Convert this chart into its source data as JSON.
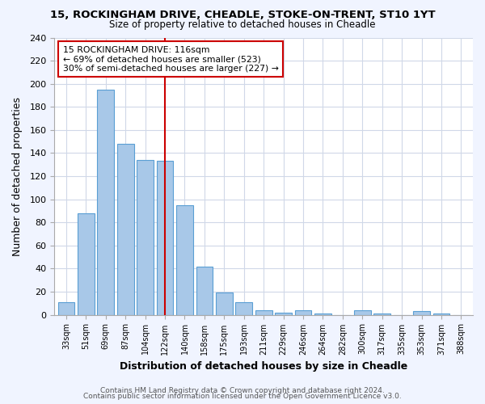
{
  "title": "15, ROCKINGHAM DRIVE, CHEADLE, STOKE-ON-TRENT, ST10 1YT",
  "subtitle": "Size of property relative to detached houses in Cheadle",
  "xlabel": "Distribution of detached houses by size in Cheadle",
  "ylabel": "Number of detached properties",
  "bar_labels": [
    "33sqm",
    "51sqm",
    "69sqm",
    "87sqm",
    "104sqm",
    "122sqm",
    "140sqm",
    "158sqm",
    "175sqm",
    "193sqm",
    "211sqm",
    "229sqm",
    "246sqm",
    "264sqm",
    "282sqm",
    "300sqm",
    "317sqm",
    "335sqm",
    "353sqm",
    "371sqm",
    "388sqm"
  ],
  "bar_values": [
    11,
    88,
    195,
    148,
    134,
    133,
    95,
    42,
    19,
    11,
    4,
    2,
    4,
    1,
    0,
    4,
    1,
    0,
    3,
    1,
    0
  ],
  "bar_color": "#a8c8e8",
  "bar_edge_color": "#5a9fd4",
  "ylim": [
    0,
    240
  ],
  "yticks": [
    0,
    20,
    40,
    60,
    80,
    100,
    120,
    140,
    160,
    180,
    200,
    220,
    240
  ],
  "vline_x_index": 5,
  "vline_color": "#cc0000",
  "annotation_title": "15 ROCKINGHAM DRIVE: 116sqm",
  "annotation_line1": "← 69% of detached houses are smaller (523)",
  "annotation_line2": "30% of semi-detached houses are larger (227) →",
  "annotation_box_color": "#ffffff",
  "annotation_box_edge": "#cc0000",
  "footer1": "Contains HM Land Registry data © Crown copyright and database right 2024.",
  "footer2": "Contains public sector information licensed under the Open Government Licence v3.0.",
  "background_color": "#f0f4ff",
  "plot_bg_color": "#ffffff",
  "grid_color": "#d0d8e8"
}
